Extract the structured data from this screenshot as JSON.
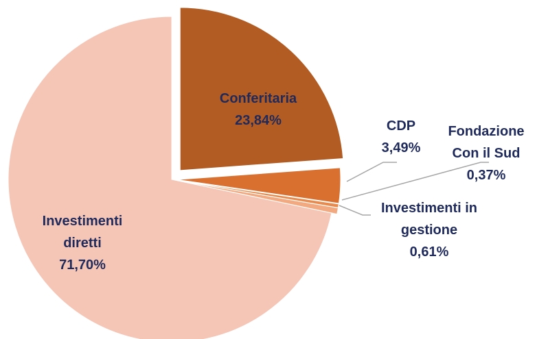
{
  "chart_data": {
    "type": "pie",
    "categories": [
      "Conferitaria",
      "CDP",
      "Fondazione Con il Sud",
      "Investimenti in gestione",
      "Investimenti diretti"
    ],
    "values": [
      23.84,
      3.49,
      0.37,
      0.61,
      71.7
    ],
    "value_labels": [
      "23,84%",
      "3,49%",
      "0,37%",
      "0,61%",
      "71,70%"
    ],
    "colors": [
      "#b25b22",
      "#d97030",
      "#e88a4c",
      "#f2a97f",
      "#f5c5b5"
    ]
  }
}
